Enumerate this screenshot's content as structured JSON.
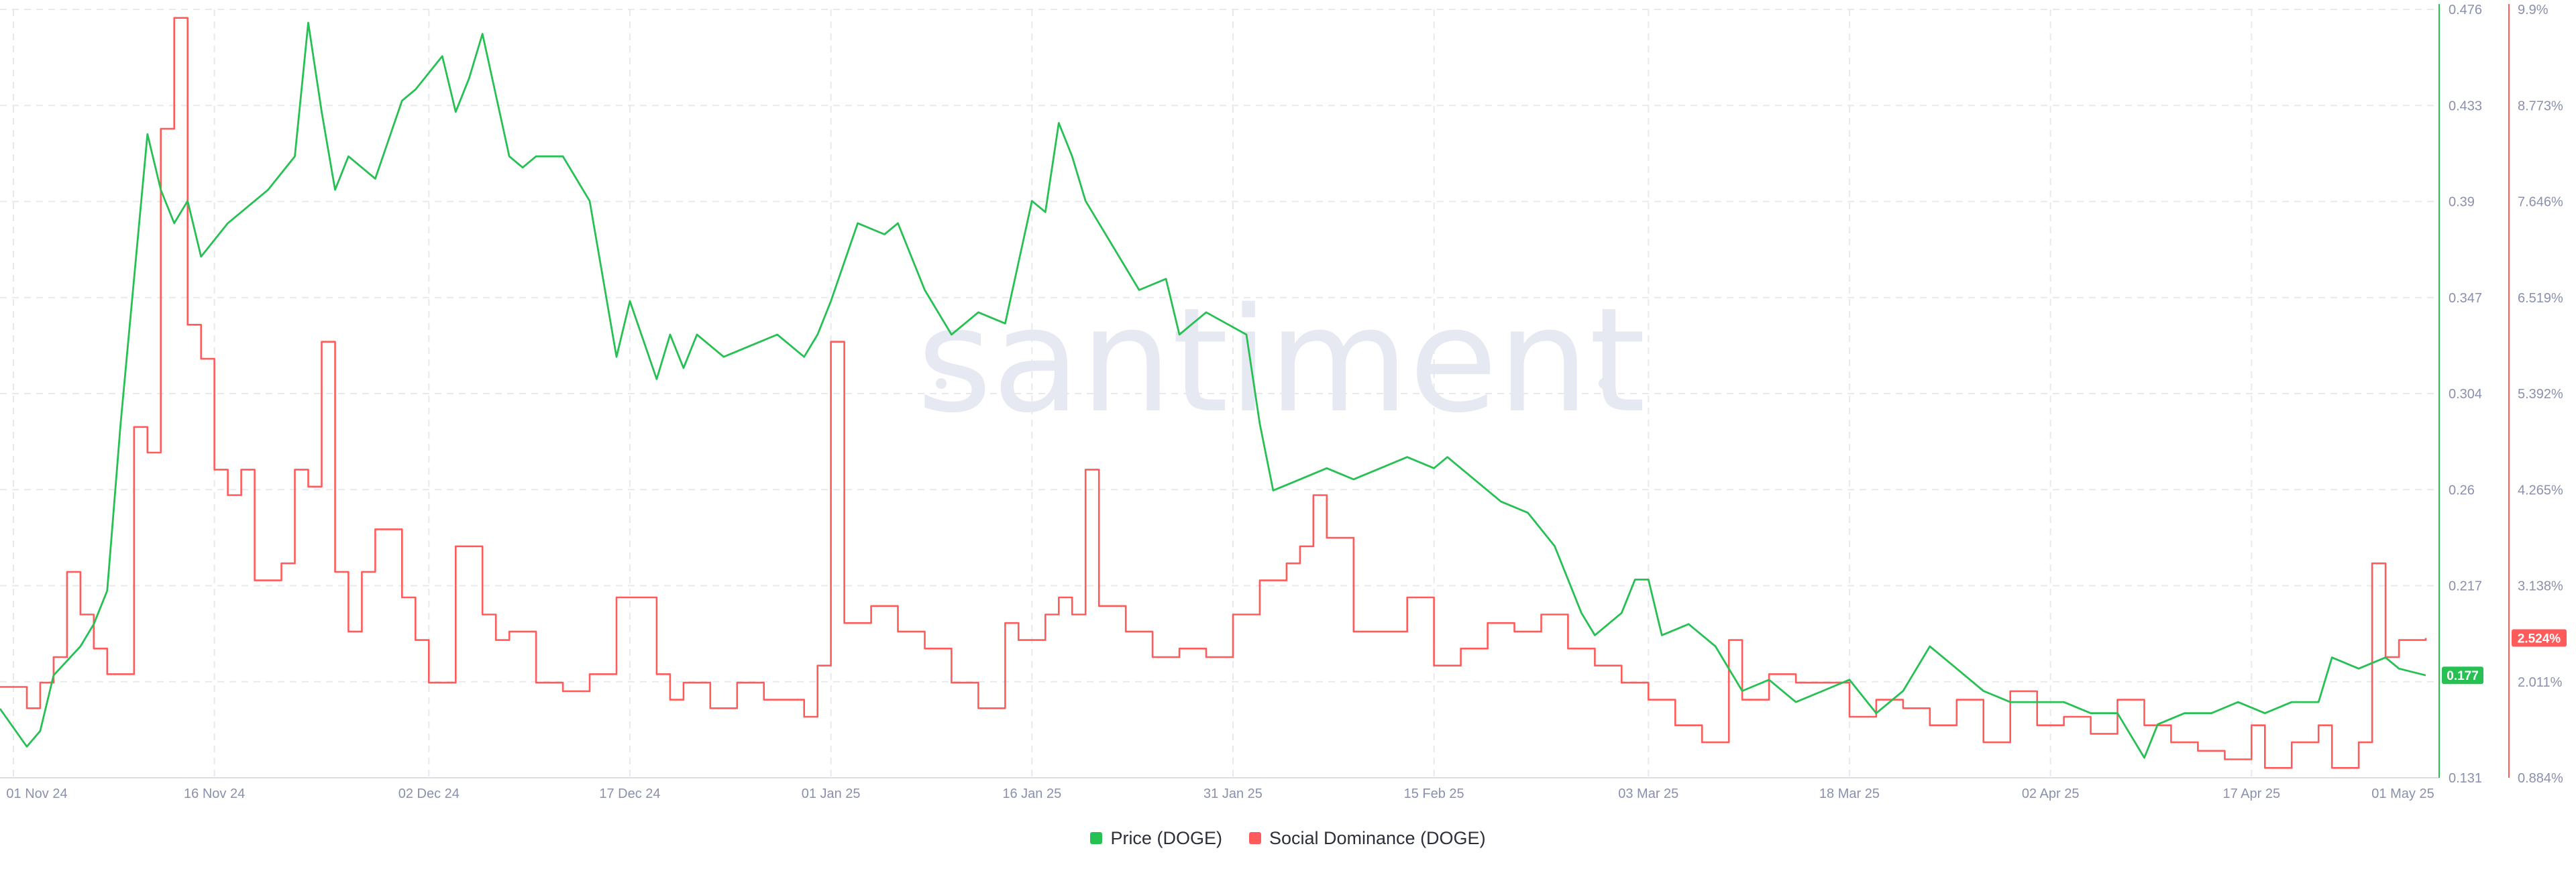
{
  "watermark": "santiment",
  "legend": {
    "price": "Price (DOGE)",
    "social": "Social Dominance (DOGE)"
  },
  "colors": {
    "price": "#26c053",
    "social": "#ff5b5b",
    "grid": "#e8e9ef",
    "tick_text": "#8a90ad",
    "watermark": "#e6e8f2"
  },
  "chart_data": {
    "type": "line",
    "title": "",
    "x_axis": {
      "range": [
        "2024-10-31",
        "2025-05-01"
      ],
      "ticks": [
        "01 Nov 24",
        "16 Nov 24",
        "02 Dec 24",
        "17 Dec 24",
        "01 Jan 25",
        "16 Jan 25",
        "31 Jan 25",
        "15 Feb 25",
        "03 Mar 25",
        "18 Mar 25",
        "02 Apr 25",
        "17 Apr 25",
        "01 May 25"
      ]
    },
    "y_axis_price": {
      "range": [
        0.131,
        0.476
      ],
      "ticks": [
        "0.476",
        "0.433",
        "0.39",
        "0.347",
        "0.304",
        "0.26",
        "0.217",
        "0.131"
      ],
      "current_value": "0.177"
    },
    "y_axis_social": {
      "range": [
        0.884,
        9.9
      ],
      "unit": "%",
      "ticks": [
        "9.9%",
        "8.773%",
        "7.646%",
        "6.519%",
        "5.392%",
        "4.265%",
        "3.138%",
        "2.011%",
        "0.884%"
      ],
      "current_value": "2.524%"
    },
    "grid": true,
    "legend_position": "bottom-center",
    "series": [
      {
        "name": "Price (DOGE)",
        "axis": "y_axis_price",
        "x": [
          "2024-10-31",
          "2024-11-02",
          "2024-11-03",
          "2024-11-04",
          "2024-11-06",
          "2024-11-07",
          "2024-11-08",
          "2024-11-09",
          "2024-11-11",
          "2024-11-12",
          "2024-11-13",
          "2024-11-14",
          "2024-11-15",
          "2024-11-17",
          "2024-11-19",
          "2024-11-20",
          "2024-11-22",
          "2024-11-23",
          "2024-11-24",
          "2024-11-25",
          "2024-11-26",
          "2024-11-28",
          "2024-11-30",
          "2024-12-01",
          "2024-12-03",
          "2024-12-04",
          "2024-12-05",
          "2024-12-06",
          "2024-12-08",
          "2024-12-09",
          "2024-12-10",
          "2024-12-12",
          "2024-12-14",
          "2024-12-16",
          "2024-12-17",
          "2024-12-19",
          "2024-12-20",
          "2024-12-21",
          "2024-12-22",
          "2024-12-24",
          "2024-12-26",
          "2024-12-28",
          "2024-12-30",
          "2024-12-31",
          "2025-01-01",
          "2025-01-03",
          "2025-01-05",
          "2025-01-06",
          "2025-01-08",
          "2025-01-10",
          "2025-01-12",
          "2025-01-14",
          "2025-01-16",
          "2025-01-17",
          "2025-01-18",
          "2025-01-19",
          "2025-01-20",
          "2025-01-22",
          "2025-01-24",
          "2025-01-26",
          "2025-01-27",
          "2025-01-29",
          "2025-02-01",
          "2025-02-02",
          "2025-02-03",
          "2025-02-05",
          "2025-02-07",
          "2025-02-09",
          "2025-02-11",
          "2025-02-13",
          "2025-02-15",
          "2025-02-16",
          "2025-02-18",
          "2025-02-20",
          "2025-02-22",
          "2025-02-24",
          "2025-02-26",
          "2025-02-27",
          "2025-03-01",
          "2025-03-02",
          "2025-03-03",
          "2025-03-04",
          "2025-03-06",
          "2025-03-08",
          "2025-03-10",
          "2025-03-12",
          "2025-03-14",
          "2025-03-16",
          "2025-03-18",
          "2025-03-20",
          "2025-03-22",
          "2025-03-24",
          "2025-03-26",
          "2025-03-28",
          "2025-03-30",
          "2025-04-01",
          "2025-04-03",
          "2025-04-05",
          "2025-04-07",
          "2025-04-09",
          "2025-04-10",
          "2025-04-12",
          "2025-04-14",
          "2025-04-16",
          "2025-04-18",
          "2025-04-20",
          "2025-04-22",
          "2025-04-23",
          "2025-04-25",
          "2025-04-27",
          "2025-04-28",
          "2025-04-30"
        ],
        "values": [
          0.162,
          0.145,
          0.152,
          0.177,
          0.19,
          0.2,
          0.215,
          0.29,
          0.42,
          0.395,
          0.38,
          0.39,
          0.365,
          0.38,
          0.39,
          0.395,
          0.41,
          0.47,
          0.43,
          0.395,
          0.41,
          0.4,
          0.435,
          0.44,
          0.455,
          0.43,
          0.445,
          0.465,
          0.41,
          0.405,
          0.41,
          0.41,
          0.39,
          0.32,
          0.345,
          0.31,
          0.33,
          0.315,
          0.33,
          0.32,
          0.325,
          0.33,
          0.32,
          0.33,
          0.345,
          0.38,
          0.375,
          0.38,
          0.35,
          0.33,
          0.34,
          0.335,
          0.39,
          0.385,
          0.425,
          0.41,
          0.39,
          0.37,
          0.35,
          0.355,
          0.33,
          0.34,
          0.33,
          0.29,
          0.26,
          0.265,
          0.27,
          0.265,
          0.27,
          0.275,
          0.27,
          0.275,
          0.265,
          0.255,
          0.25,
          0.235,
          0.205,
          0.195,
          0.205,
          0.22,
          0.22,
          0.195,
          0.2,
          0.19,
          0.17,
          0.175,
          0.165,
          0.17,
          0.175,
          0.16,
          0.17,
          0.19,
          0.18,
          0.17,
          0.165,
          0.165,
          0.165,
          0.16,
          0.16,
          0.14,
          0.155,
          0.16,
          0.16,
          0.165,
          0.16,
          0.165,
          0.165,
          0.185,
          0.18,
          0.185,
          0.18,
          0.177
        ]
      },
      {
        "name": "Social Dominance (DOGE)",
        "axis": "y_axis_social",
        "x": [
          "2024-10-31",
          "2024-11-02",
          "2024-11-03",
          "2024-11-04",
          "2024-11-05",
          "2024-11-06",
          "2024-11-07",
          "2024-11-08",
          "2024-11-09",
          "2024-11-10",
          "2024-11-11",
          "2024-11-12",
          "2024-11-13",
          "2024-11-14",
          "2024-11-15",
          "2024-11-16",
          "2024-11-17",
          "2024-11-18",
          "2024-11-19",
          "2024-11-21",
          "2024-11-22",
          "2024-11-23",
          "2024-11-24",
          "2024-11-25",
          "2024-11-26",
          "2024-11-27",
          "2024-11-28",
          "2024-11-30",
          "2024-12-01",
          "2024-12-02",
          "2024-12-04",
          "2024-12-06",
          "2024-12-07",
          "2024-12-08",
          "2024-12-10",
          "2024-12-12",
          "2024-12-14",
          "2024-12-16",
          "2024-12-19",
          "2024-12-20",
          "2024-12-21",
          "2024-12-23",
          "2024-12-25",
          "2024-12-27",
          "2024-12-30",
          "2024-12-31",
          "2025-01-01",
          "2025-01-02",
          "2025-01-04",
          "2025-01-06",
          "2025-01-08",
          "2025-01-10",
          "2025-01-12",
          "2025-01-14",
          "2025-01-15",
          "2025-01-17",
          "2025-01-18",
          "2025-01-19",
          "2025-01-20",
          "2025-01-21",
          "2025-01-23",
          "2025-01-25",
          "2025-01-27",
          "2025-01-29",
          "2025-01-31",
          "2025-02-02",
          "2025-02-04",
          "2025-02-05",
          "2025-02-06",
          "2025-02-07",
          "2025-02-09",
          "2025-02-11",
          "2025-02-13",
          "2025-02-15",
          "2025-02-17",
          "2025-02-19",
          "2025-02-21",
          "2025-02-23",
          "2025-02-25",
          "2025-02-27",
          "2025-03-01",
          "2025-03-03",
          "2025-03-05",
          "2025-03-07",
          "2025-03-09",
          "2025-03-10",
          "2025-03-12",
          "2025-03-14",
          "2025-03-16",
          "2025-03-18",
          "2025-03-20",
          "2025-03-22",
          "2025-03-24",
          "2025-03-26",
          "2025-03-28",
          "2025-03-30",
          "2025-04-01",
          "2025-04-03",
          "2025-04-05",
          "2025-04-07",
          "2025-04-09",
          "2025-04-11",
          "2025-04-13",
          "2025-04-15",
          "2025-04-17",
          "2025-04-18",
          "2025-04-20",
          "2025-04-22",
          "2025-04-23",
          "2025-04-25",
          "2025-04-26",
          "2025-04-27",
          "2025-04-28",
          "2025-04-30"
        ],
        "values": [
          1.95,
          1.7,
          2.0,
          2.3,
          3.3,
          2.8,
          2.4,
          2.1,
          2.1,
          5.0,
          4.7,
          8.5,
          9.8,
          6.2,
          5.8,
          4.5,
          4.2,
          4.5,
          3.2,
          3.4,
          4.5,
          4.3,
          6.0,
          3.3,
          2.6,
          3.3,
          3.8,
          3.0,
          2.5,
          2.0,
          3.6,
          2.8,
          2.5,
          2.6,
          2.0,
          1.9,
          2.1,
          3.0,
          2.1,
          1.8,
          2.0,
          1.7,
          2.0,
          1.8,
          1.6,
          2.2,
          6.0,
          2.7,
          2.9,
          2.6,
          2.4,
          2.0,
          1.7,
          2.7,
          2.5,
          2.8,
          3.0,
          2.8,
          4.5,
          2.9,
          2.6,
          2.3,
          2.4,
          2.3,
          2.8,
          3.2,
          3.4,
          3.6,
          4.2,
          3.7,
          2.6,
          2.6,
          3.0,
          2.2,
          2.4,
          2.7,
          2.6,
          2.8,
          2.4,
          2.2,
          2.0,
          1.8,
          1.5,
          1.3,
          2.5,
          1.8,
          2.1,
          2.0,
          2.0,
          1.6,
          1.8,
          1.7,
          1.5,
          1.8,
          1.3,
          1.9,
          1.5,
          1.6,
          1.4,
          1.8,
          1.5,
          1.3,
          1.2,
          1.1,
          1.5,
          1.0,
          1.3,
          1.5,
          1.0,
          1.3,
          3.4,
          2.3,
          2.5,
          2.524
        ]
      }
    ]
  }
}
